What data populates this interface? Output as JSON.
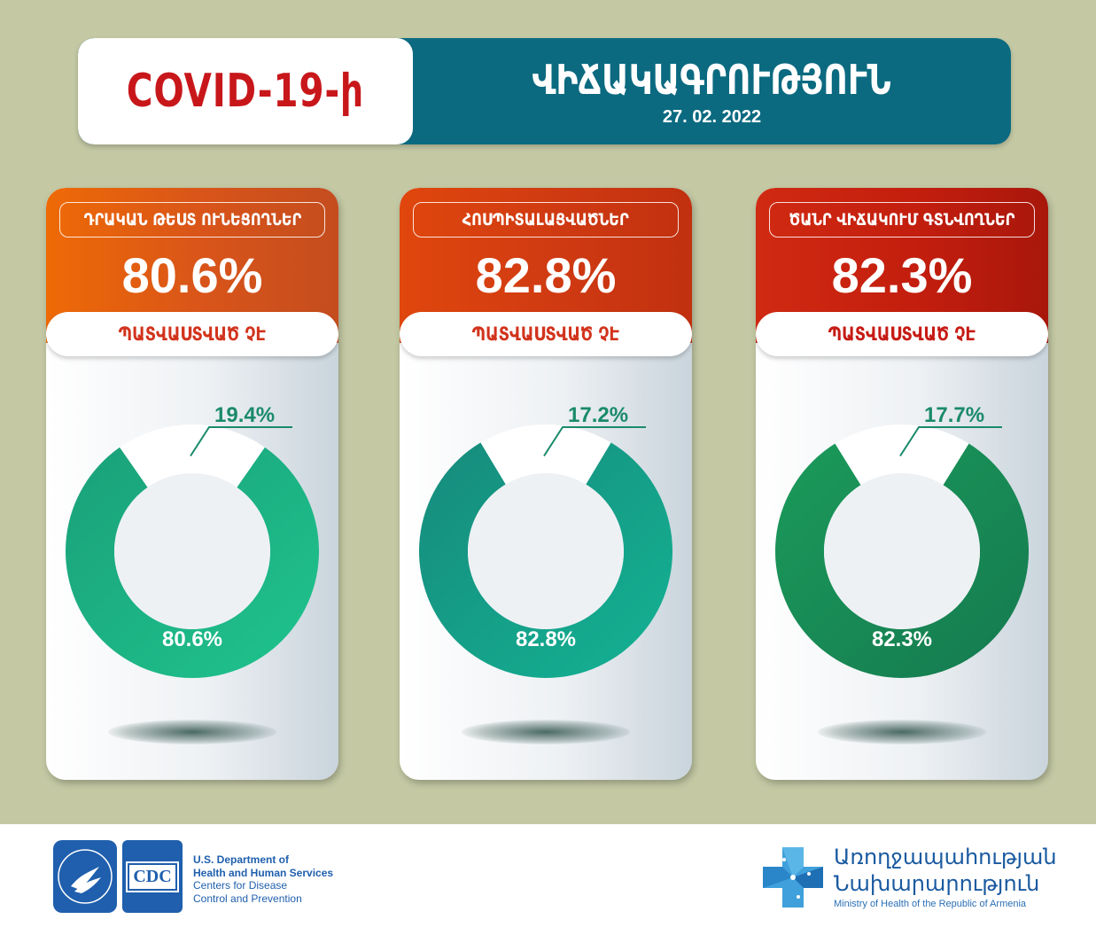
{
  "header": {
    "covid_label": "COVID-19-ի",
    "title": "ՎԻՃԱԿԱԳՐՈՒԹՅՈՒՆ",
    "date": "27. 02. 2022"
  },
  "cards": [
    {
      "category": "ԴՐԱԿԱՆ ԹԵՍՏ ՈՒՆԵՑՈՂՆԵՐ",
      "big_value": "80.6%",
      "status": "ՊԱՏՎԱՍՏՎԱԾ ՉԷ",
      "unvaccinated_label": "80.6%",
      "vaccinated_label": "19.4%",
      "unvaccinated_value": 80.6,
      "band_colors": [
        "#ee6a06",
        "#d8541a",
        "#c44d1e"
      ],
      "donut_colors": [
        "#1aa079",
        "#1fc48d"
      ],
      "status_color": "#d2331c"
    },
    {
      "category": "ՀՈՍՊԻՏԱԼԱՑՎԱԾՆԵՐ",
      "big_value": "82.8%",
      "status": "ՊԱՏՎԱՍՏՎԱԾ ՉԷ",
      "unvaccinated_label": "82.8%",
      "vaccinated_label": "17.2%",
      "unvaccinated_value": 82.8,
      "band_colors": [
        "#e0470d",
        "#cf3a12",
        "#c1300f"
      ],
      "donut_colors": [
        "#168a7c",
        "#14b394"
      ],
      "status_color": "#d2331c"
    },
    {
      "category": "ԾԱՆՐ ՎԻՃԱԿՈՒՄ ԳՏՆՎՈՂՆԵՐ",
      "big_value": "82.3%",
      "status": "ՊԱՏՎԱՍՏՎԱԾ ՉԷ",
      "unvaccinated_label": "82.3%",
      "vaccinated_label": "17.7%",
      "unvaccinated_value": 82.3,
      "band_colors": [
        "#d02a12",
        "#c31e0e",
        "#a8170b"
      ],
      "donut_colors": [
        "#1b9a5a",
        "#157a50"
      ],
      "status_color": "#c61b14"
    }
  ],
  "footer": {
    "hhs_line1": "U.S. Department of",
    "hhs_line2": "Health and Human Services",
    "hhs_line3": "Centers for Disease",
    "hhs_line4": "Control and Prevention",
    "cdc_logo_text": "CDC",
    "moh_line1": "Առողջապահության",
    "moh_line2": "Նախարարություն",
    "moh_line3": "Ministry of Health of the Republic of Armenia"
  },
  "colors": {
    "background": "#c4c9a4",
    "header_teal": "#0b6a80",
    "covid_red": "#c8171b",
    "label_green": "#1a8a6a"
  }
}
